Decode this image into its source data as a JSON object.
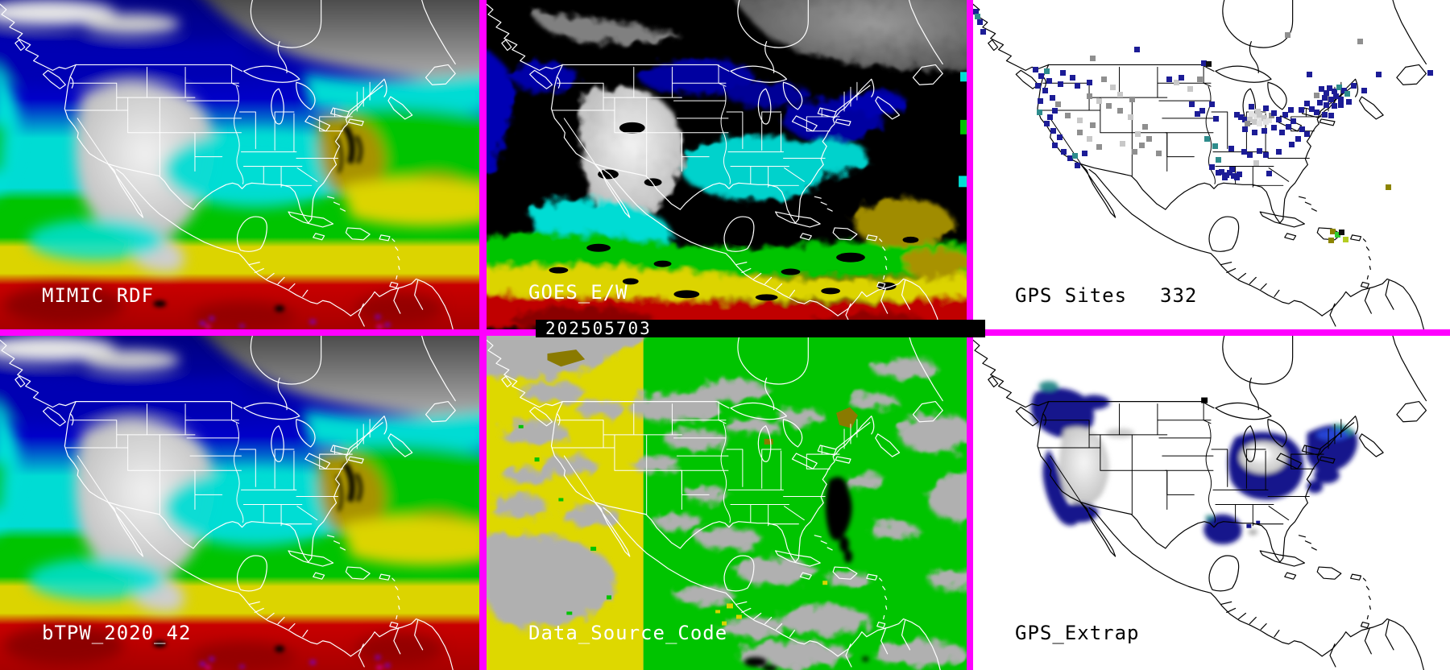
{
  "labels": {
    "mimic": "MIMIC RDF",
    "goes": "GOES_E/W",
    "timestamp": "202505703",
    "gps_sites": "GPS Sites",
    "gps_sites_count": "332",
    "btpw": "bTPW_2020_42",
    "data_source": "Data_Source_Code",
    "gps_extrap": "GPS_Extrap"
  },
  "colors": {
    "divider": "#ff00ff",
    "label_on_dark": "#ffffff",
    "label_on_light": "#000000",
    "timestamp_bar_bg": "#000000",
    "timestamp_text": "#ffffff",
    "map_outline_on_color": "#ffffff",
    "map_outline_on_white": "#000000",
    "white_panel_bg": "#ffffff"
  },
  "palette": {
    "tpw_scale": [
      "#000082",
      "#0000c8",
      "#00dcd4",
      "#00c400",
      "#dcd400",
      "#c80000",
      "#a89200",
      "#7a00d2",
      "#e000e0"
    ],
    "data_source_codes": {
      "west_geo": "#ded800",
      "east_geo": "#00c400",
      "no_data": "#b0b0b0",
      "special": "#8a7a00",
      "missing": "#000000"
    },
    "dots": {
      "n": "#1c1c96",
      "t": "#2e8c8c",
      "g": "#8f8f8f",
      "l": "#c8c8c8",
      "w": "#e2e2e2",
      "gr": "#2ecc2e",
      "yg": "#b4cc22",
      "o": "#8c8400",
      "k": "#101010"
    }
  },
  "gps_sites_points": [
    {
      "x": 0.5,
      "y": 3.5,
      "c": "n"
    },
    {
      "x": 1.3,
      "y": 6.5,
      "c": "n"
    },
    {
      "x": 2.0,
      "y": 9.5,
      "c": "n"
    },
    {
      "x": 0.8,
      "y": 5.0,
      "c": "t"
    },
    {
      "x": 48.3,
      "y": 19.0,
      "c": "n"
    },
    {
      "x": 49.3,
      "y": 19.3,
      "c": "k"
    },
    {
      "x": 34.3,
      "y": 15.0,
      "c": "n"
    },
    {
      "x": 65.8,
      "y": 10.5,
      "c": "g"
    },
    {
      "x": 81.0,
      "y": 12.5,
      "c": "g"
    },
    {
      "x": 70.5,
      "y": 22.5,
      "c": "n"
    },
    {
      "x": 13.0,
      "y": 21.0,
      "c": "n"
    },
    {
      "x": 14.2,
      "y": 23.0,
      "c": "n"
    },
    {
      "x": 15.3,
      "y": 21.5,
      "c": "t"
    },
    {
      "x": 15.8,
      "y": 24.5,
      "c": "n"
    },
    {
      "x": 13.5,
      "y": 26.0,
      "c": "n"
    },
    {
      "x": 15.0,
      "y": 27.5,
      "c": "n"
    },
    {
      "x": 16.5,
      "y": 29.5,
      "c": "n"
    },
    {
      "x": 14.0,
      "y": 30.5,
      "c": "n"
    },
    {
      "x": 18.8,
      "y": 22.0,
      "c": "n"
    },
    {
      "x": 20.8,
      "y": 23.5,
      "c": "n"
    },
    {
      "x": 18.3,
      "y": 25.5,
      "c": "n"
    },
    {
      "x": 21.8,
      "y": 26.0,
      "c": "n"
    },
    {
      "x": 24.3,
      "y": 25.0,
      "c": "n"
    },
    {
      "x": 25.0,
      "y": 17.5,
      "c": "g"
    },
    {
      "x": 27.3,
      "y": 24.0,
      "c": "g"
    },
    {
      "x": 29.3,
      "y": 26.5,
      "c": "l"
    },
    {
      "x": 24.3,
      "y": 29.0,
      "c": "g"
    },
    {
      "x": 26.3,
      "y": 30.5,
      "c": "l"
    },
    {
      "x": 28.3,
      "y": 32.0,
      "c": "g"
    },
    {
      "x": 30.8,
      "y": 28.5,
      "c": "l"
    },
    {
      "x": 33.3,
      "y": 30.0,
      "c": "g"
    },
    {
      "x": 19.8,
      "y": 35.0,
      "c": "g"
    },
    {
      "x": 22.3,
      "y": 36.5,
      "c": "l"
    },
    {
      "x": 25.0,
      "y": 37.8,
      "c": "g"
    },
    {
      "x": 30.8,
      "y": 33.5,
      "c": "g"
    },
    {
      "x": 17.8,
      "y": 31.5,
      "c": "g"
    },
    {
      "x": 17.0,
      "y": 33.5,
      "c": "n"
    },
    {
      "x": 16.0,
      "y": 35.5,
      "c": "n"
    },
    {
      "x": 13.8,
      "y": 34.0,
      "c": "t"
    },
    {
      "x": 15.3,
      "y": 37.5,
      "c": "n"
    },
    {
      "x": 16.8,
      "y": 39.5,
      "c": "n"
    },
    {
      "x": 18.0,
      "y": 41.5,
      "c": "n"
    },
    {
      "x": 17.0,
      "y": 44.0,
      "c": "n"
    },
    {
      "x": 19.0,
      "y": 46.0,
      "c": "n"
    },
    {
      "x": 20.3,
      "y": 48.0,
      "c": "n"
    },
    {
      "x": 21.3,
      "y": 47.3,
      "c": "t"
    },
    {
      "x": 21.8,
      "y": 50.0,
      "c": "n"
    },
    {
      "x": 23.3,
      "y": 46.5,
      "c": "n"
    },
    {
      "x": 22.3,
      "y": 40.0,
      "c": "g"
    },
    {
      "x": 24.3,
      "y": 42.0,
      "c": "l"
    },
    {
      "x": 26.3,
      "y": 44.5,
      "c": "g"
    },
    {
      "x": 31.3,
      "y": 43.5,
      "c": "l"
    },
    {
      "x": 33.8,
      "y": 46.0,
      "c": "g"
    },
    {
      "x": 35.3,
      "y": 44.0,
      "c": "g"
    },
    {
      "x": 33.0,
      "y": 35.5,
      "c": "l"
    },
    {
      "x": 36.0,
      "y": 38.5,
      "c": "g"
    },
    {
      "x": 34.5,
      "y": 40.5,
      "c": "l"
    },
    {
      "x": 36.8,
      "y": 42.0,
      "c": "g"
    },
    {
      "x": 38.8,
      "y": 46.5,
      "c": "g"
    },
    {
      "x": 42.5,
      "y": 25.0,
      "c": "l"
    },
    {
      "x": 45.5,
      "y": 27.0,
      "c": "l"
    },
    {
      "x": 47.5,
      "y": 24.0,
      "c": "g"
    },
    {
      "x": 41.0,
      "y": 24.0,
      "c": "n"
    },
    {
      "x": 43.5,
      "y": 23.5,
      "c": "n"
    },
    {
      "x": 45.8,
      "y": 31.5,
      "c": "n"
    },
    {
      "x": 48.0,
      "y": 33.5,
      "c": "n"
    },
    {
      "x": 50.0,
      "y": 31.5,
      "c": "n"
    },
    {
      "x": 47.0,
      "y": 34.5,
      "c": "n"
    },
    {
      "x": 50.8,
      "y": 36.0,
      "c": "n"
    },
    {
      "x": 55.3,
      "y": 34.8,
      "c": "n"
    },
    {
      "x": 57.0,
      "y": 36.2,
      "c": "n"
    },
    {
      "x": 58.3,
      "y": 34.5,
      "c": "w"
    },
    {
      "x": 59.3,
      "y": 35.3,
      "c": "w"
    },
    {
      "x": 60.3,
      "y": 36.0,
      "c": "w"
    },
    {
      "x": 59.0,
      "y": 36.8,
      "c": "l"
    },
    {
      "x": 60.0,
      "y": 37.5,
      "c": "w"
    },
    {
      "x": 61.0,
      "y": 35.8,
      "c": "l"
    },
    {
      "x": 58.0,
      "y": 36.3,
      "c": "l"
    },
    {
      "x": 61.3,
      "y": 37.0,
      "c": "w"
    },
    {
      "x": 60.0,
      "y": 34.8,
      "c": "l"
    },
    {
      "x": 62.0,
      "y": 36.5,
      "c": "w"
    },
    {
      "x": 57.5,
      "y": 37.5,
      "c": "g"
    },
    {
      "x": 62.5,
      "y": 35.0,
      "c": "g"
    },
    {
      "x": 59.7,
      "y": 33.8,
      "c": "l"
    },
    {
      "x": 56.0,
      "y": 35.5,
      "c": "n"
    },
    {
      "x": 57.0,
      "y": 39.0,
      "c": "n"
    },
    {
      "x": 59.0,
      "y": 40.0,
      "c": "n"
    },
    {
      "x": 61.0,
      "y": 39.7,
      "c": "n"
    },
    {
      "x": 63.0,
      "y": 38.7,
      "c": "n"
    },
    {
      "x": 64.0,
      "y": 36.3,
      "c": "n"
    },
    {
      "x": 63.0,
      "y": 34.3,
      "c": "n"
    },
    {
      "x": 61.3,
      "y": 32.7,
      "c": "n"
    },
    {
      "x": 58.3,
      "y": 32.3,
      "c": "n"
    },
    {
      "x": 64.7,
      "y": 40.0,
      "c": "n"
    },
    {
      "x": 66.0,
      "y": 38.3,
      "c": "n"
    },
    {
      "x": 67.0,
      "y": 36.7,
      "c": "n"
    },
    {
      "x": 65.3,
      "y": 34.7,
      "c": "n"
    },
    {
      "x": 66.5,
      "y": 33.2,
      "c": "n"
    },
    {
      "x": 73.0,
      "y": 27.0,
      "c": "n"
    },
    {
      "x": 74.0,
      "y": 28.0,
      "c": "n"
    },
    {
      "x": 74.7,
      "y": 26.7,
      "c": "n"
    },
    {
      "x": 75.7,
      "y": 27.7,
      "c": "n"
    },
    {
      "x": 76.0,
      "y": 29.0,
      "c": "n"
    },
    {
      "x": 75.0,
      "y": 30.0,
      "c": "n"
    },
    {
      "x": 73.7,
      "y": 29.7,
      "c": "n"
    },
    {
      "x": 76.7,
      "y": 26.3,
      "c": "t"
    },
    {
      "x": 77.7,
      "y": 27.3,
      "c": "n"
    },
    {
      "x": 78.3,
      "y": 28.3,
      "c": "t"
    },
    {
      "x": 77.0,
      "y": 30.0,
      "c": "n"
    },
    {
      "x": 72.7,
      "y": 31.0,
      "c": "n"
    },
    {
      "x": 74.0,
      "y": 31.7,
      "c": "n"
    },
    {
      "x": 75.7,
      "y": 32.0,
      "c": "n"
    },
    {
      "x": 77.0,
      "y": 31.7,
      "c": "n"
    },
    {
      "x": 78.7,
      "y": 30.7,
      "c": "n"
    },
    {
      "x": 71.0,
      "y": 33.0,
      "c": "n"
    },
    {
      "x": 72.0,
      "y": 34.0,
      "c": "n"
    },
    {
      "x": 73.7,
      "y": 34.7,
      "c": "n"
    },
    {
      "x": 75.0,
      "y": 35.0,
      "c": "n"
    },
    {
      "x": 70.0,
      "y": 31.3,
      "c": "n"
    },
    {
      "x": 68.7,
      "y": 33.3,
      "c": "n"
    },
    {
      "x": 72.0,
      "y": 28.8,
      "c": "g"
    },
    {
      "x": 79.7,
      "y": 26.0,
      "c": "n"
    },
    {
      "x": 82.0,
      "y": 27.5,
      "c": "n"
    },
    {
      "x": 85.0,
      "y": 22.5,
      "c": "n"
    },
    {
      "x": 95.7,
      "y": 22.0,
      "c": "n"
    },
    {
      "x": 69.0,
      "y": 39.0,
      "c": "n"
    },
    {
      "x": 70.0,
      "y": 40.7,
      "c": "n"
    },
    {
      "x": 68.0,
      "y": 42.0,
      "c": "n"
    },
    {
      "x": 66.7,
      "y": 43.7,
      "c": "n"
    },
    {
      "x": 54.0,
      "y": 45.0,
      "c": "n"
    },
    {
      "x": 56.7,
      "y": 46.0,
      "c": "n"
    },
    {
      "x": 58.0,
      "y": 47.0,
      "c": "n"
    },
    {
      "x": 60.0,
      "y": 45.7,
      "c": "n"
    },
    {
      "x": 64.0,
      "y": 46.0,
      "c": "n"
    },
    {
      "x": 49.0,
      "y": 42.0,
      "c": "t"
    },
    {
      "x": 50.7,
      "y": 44.3,
      "c": "t"
    },
    {
      "x": 51.3,
      "y": 48.3,
      "c": "t"
    },
    {
      "x": 50.0,
      "y": 50.7,
      "c": "n"
    },
    {
      "x": 59.3,
      "y": 49.3,
      "c": "l"
    },
    {
      "x": 61.3,
      "y": 47.0,
      "c": "n"
    },
    {
      "x": 52.0,
      "y": 52.0,
      "c": "n"
    },
    {
      "x": 53.0,
      "y": 53.0,
      "c": "n"
    },
    {
      "x": 53.8,
      "y": 52.3,
      "c": "n"
    },
    {
      "x": 52.7,
      "y": 53.8,
      "c": "n"
    },
    {
      "x": 54.5,
      "y": 53.2,
      "c": "n"
    },
    {
      "x": 55.3,
      "y": 53.8,
      "c": "n"
    },
    {
      "x": 51.3,
      "y": 52.3,
      "c": "n"
    },
    {
      "x": 55.8,
      "y": 52.7,
      "c": "n"
    },
    {
      "x": 54.3,
      "y": 51.3,
      "c": "n"
    },
    {
      "x": 62.0,
      "y": 52.5,
      "c": "n"
    },
    {
      "x": 75.3,
      "y": 70.2,
      "c": "o"
    },
    {
      "x": 76.3,
      "y": 71.2,
      "c": "gr"
    },
    {
      "x": 78.0,
      "y": 72.6,
      "c": "yg"
    },
    {
      "x": 75.0,
      "y": 72.8,
      "c": "o"
    },
    {
      "x": 77.2,
      "y": 70.4,
      "c": "k"
    },
    {
      "x": 87.0,
      "y": 56.7,
      "c": "o"
    }
  ]
}
